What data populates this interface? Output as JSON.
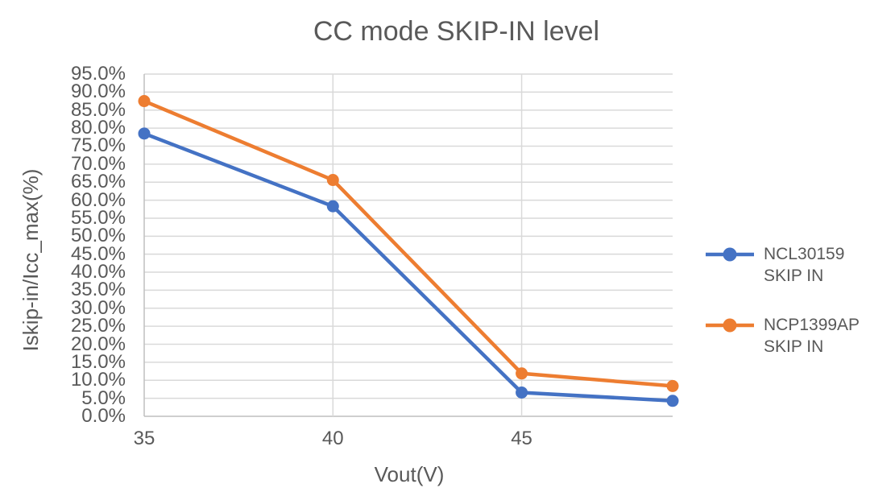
{
  "chart_data": {
    "type": "line",
    "title": "CC mode SKIP-IN level",
    "xlabel": "Vout(V)",
    "ylabel": "Iskip-in/Icc_max(%)",
    "x": [
      35,
      40,
      45,
      49
    ],
    "series": [
      {
        "name": "NCL30159 SKIP IN",
        "color": "#4472C4",
        "values": [
          78.5,
          58.3,
          6.6,
          4.3
        ]
      },
      {
        "name": "NCP1399AP SKIP IN",
        "color": "#ED7D31",
        "values": [
          87.5,
          65.6,
          11.9,
          8.4
        ]
      }
    ],
    "xlim": [
      35,
      49
    ],
    "ylim": [
      0,
      95
    ],
    "x_major_unit": 5,
    "y_major_unit": 5,
    "grid": true,
    "legend_position": "right",
    "xtick_values": [
      35,
      40,
      45
    ],
    "xtick_labels": [
      "35",
      "40",
      "45"
    ],
    "ytick_values": [
      0,
      5,
      10,
      15,
      20,
      25,
      30,
      35,
      40,
      45,
      50,
      55,
      60,
      65,
      70,
      75,
      80,
      85,
      90,
      95
    ],
    "ytick_labels": [
      "0.0%",
      "5.0%",
      "10.0%",
      "15.0%",
      "20.0%",
      "25.0%",
      "30.0%",
      "35.0%",
      "40.0%",
      "45.0%",
      "50.0%",
      "55.0%",
      "60.0%",
      "65.0%",
      "70.0%",
      "75.0%",
      "80.0%",
      "85.0%",
      "90.0%",
      "95.0%"
    ],
    "colors": {
      "text": "#595959",
      "gridline": "#D9D9D9",
      "axis_line": "#BFBFBF",
      "background": "#FFFFFF"
    }
  }
}
